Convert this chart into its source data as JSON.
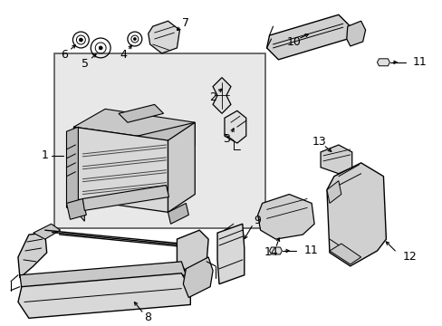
{
  "background_color": "#ffffff",
  "figsize": [
    4.89,
    3.6
  ],
  "dpi": 100,
  "box_bg": "#e0e0e0",
  "box_edge": "#888888",
  "part_color": "#000000",
  "part_lw": 0.9
}
